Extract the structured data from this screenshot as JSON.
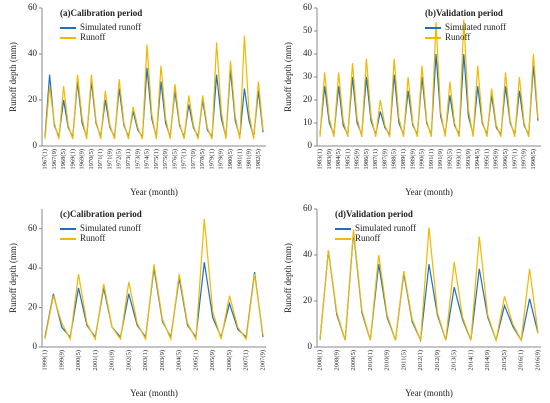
{
  "chart_data": [
    {
      "type": "line",
      "title": "(a)Calibration period",
      "xlabel": "Year (month)",
      "ylabel": "Runoff depth (mm)",
      "categories": [
        "1967(1)",
        null,
        "1967(9)",
        null,
        "1968(5)",
        null,
        "1969(1)",
        null,
        "1969(9)",
        null,
        "1970(5)",
        null,
        "1971(1)",
        null,
        "1971(9)",
        null,
        "1972(5)",
        null,
        "1973(1)",
        null,
        "1973(9)",
        null,
        "1974(5)",
        null,
        "1975(1)",
        null,
        "1975(9)",
        null,
        "1976(5)",
        null,
        "1977(1)",
        null,
        "1977(9)",
        null,
        "1978(5)",
        null,
        "1979(1)",
        null,
        "1979(9)",
        null,
        "1980(5)",
        null,
        "1981(1)",
        null,
        "1981(9)",
        null,
        "1982(5)",
        null
      ],
      "series": [
        {
          "name": "Simulated runoff",
          "color": "#1f6fc0",
          "values": [
            4,
            31,
            9,
            4,
            20,
            8,
            4,
            28,
            10,
            4,
            28,
            10,
            4,
            20,
            8,
            4,
            25,
            9,
            4,
            15,
            7,
            4,
            34,
            12,
            4,
            28,
            10,
            4,
            24,
            9,
            4,
            18,
            8,
            4,
            20,
            7,
            4,
            31,
            12,
            4,
            33,
            11,
            4,
            25,
            11,
            4,
            24,
            6
          ]
        },
        {
          "name": "Runoff",
          "color": "#f2b800",
          "values": [
            3,
            26,
            10,
            3,
            26,
            9,
            3,
            31,
            12,
            3,
            31,
            11,
            3,
            24,
            9,
            3,
            29,
            10,
            3,
            17,
            8,
            3,
            44,
            14,
            3,
            35,
            12,
            3,
            27,
            10,
            3,
            22,
            9,
            3,
            22,
            8,
            3,
            45,
            15,
            3,
            37,
            13,
            3,
            48,
            14,
            3,
            28,
            7
          ]
        }
      ],
      "ylim": [
        0,
        60
      ],
      "yticks": [
        0,
        20,
        40,
        60
      ]
    },
    {
      "type": "line",
      "title": "(b)Validation period",
      "xlabel": "Year (month)",
      "ylabel": "Runoff depth (mm)",
      "categories": [
        "1983(1)",
        null,
        "1983(9)",
        null,
        "1984(5)",
        null,
        "1985(1)",
        null,
        "1985(9)",
        null,
        "1986(5)",
        null,
        "1987(1)",
        null,
        "1987(9)",
        null,
        "1988(5)",
        null,
        "1989(1)",
        null,
        "1989(9)",
        null,
        "1990(5)",
        null,
        "1991(1)",
        null,
        "1991(9)",
        null,
        "1992(5)",
        null,
        "1993(1)",
        null,
        "1993(9)",
        null,
        "1994(5)",
        null,
        "1995(1)",
        null,
        "1995(9)",
        null,
        "1996(5)",
        null,
        "1997(1)",
        null,
        "1997(9)",
        null,
        "1998(5)",
        null
      ],
      "series": [
        {
          "name": "Simulated runoff",
          "color": "#1f6fc0",
          "values": [
            5,
            26,
            10,
            5,
            26,
            9,
            5,
            30,
            10,
            5,
            30,
            11,
            5,
            15,
            8,
            5,
            31,
            10,
            5,
            24,
            9,
            5,
            30,
            10,
            5,
            40,
            13,
            5,
            22,
            9,
            5,
            40,
            13,
            5,
            26,
            10,
            5,
            22,
            8,
            5,
            26,
            10,
            5,
            24,
            9,
            5,
            35,
            11
          ]
        },
        {
          "name": "Runoff",
          "color": "#f2b800",
          "values": [
            4,
            32,
            12,
            4,
            32,
            11,
            4,
            36,
            12,
            4,
            38,
            13,
            4,
            20,
            9,
            4,
            38,
            12,
            4,
            30,
            10,
            4,
            35,
            11,
            4,
            54,
            15,
            4,
            28,
            10,
            4,
            55,
            16,
            4,
            35,
            11,
            4,
            25,
            9,
            4,
            32,
            11,
            4,
            30,
            10,
            4,
            40,
            12
          ]
        }
      ],
      "ylim": [
        0,
        60
      ],
      "yticks": [
        0,
        10,
        20,
        30,
        40,
        50,
        60
      ]
    },
    {
      "type": "line",
      "title": "(c)Calibration period",
      "xlabel": "Year (month)",
      "ylabel": "Runoff depth (mm)",
      "categories": [
        "1999(1)",
        null,
        "1999(9)",
        null,
        "2000(5)",
        null,
        "2001(1)",
        null,
        "2001(9)",
        null,
        "2002(5)",
        null,
        "2003(1)",
        null,
        "2003(9)",
        null,
        "2004(5)",
        null,
        "2005(1)",
        null,
        "2005(9)",
        null,
        "2006(5)",
        null,
        "2007(1)",
        null,
        "2007(9)"
      ],
      "series": [
        {
          "name": "Simulated runoff",
          "color": "#1f6fc0",
          "values": [
            5,
            27,
            10,
            5,
            30,
            11,
            5,
            30,
            10,
            5,
            27,
            11,
            5,
            40,
            13,
            5,
            35,
            11,
            5,
            43,
            15,
            5,
            22,
            9,
            5,
            38,
            5
          ]
        },
        {
          "name": "Runoff",
          "color": "#f2b800",
          "values": [
            4,
            26,
            12,
            4,
            37,
            12,
            4,
            32,
            10,
            4,
            33,
            12,
            4,
            42,
            14,
            4,
            37,
            12,
            4,
            65,
            18,
            4,
            26,
            10,
            4,
            37,
            6
          ]
        }
      ],
      "ylim": [
        0,
        70
      ],
      "yticks": [
        0,
        20,
        40,
        60
      ]
    },
    {
      "type": "line",
      "title": "(d)Validation period",
      "xlabel": "Year (month)",
      "ylabel": "Runoff depth (mm)",
      "categories": [
        "2008(1)",
        null,
        "2008(9)",
        null,
        "2009(5)",
        null,
        "2010(1)",
        null,
        "2010(9)",
        null,
        "2011(5)",
        null,
        "2012(1)",
        null,
        "2012(9)",
        null,
        "2013(5)",
        null,
        "2014(1)",
        null,
        "2014(9)",
        null,
        "2015(5)",
        null,
        "2016(1)",
        null,
        "2016(9)"
      ],
      "series": [
        {
          "name": "Simulated runoff",
          "color": "#1f6fc0",
          "values": [
            3,
            42,
            14,
            3,
            50,
            15,
            3,
            36,
            13,
            3,
            32,
            11,
            3,
            36,
            14,
            3,
            26,
            12,
            3,
            34,
            13,
            3,
            18,
            9,
            3,
            21,
            6
          ]
        },
        {
          "name": "Runoff",
          "color": "#f2b800",
          "values": [
            3,
            42,
            15,
            3,
            51,
            16,
            3,
            40,
            14,
            3,
            33,
            12,
            3,
            52,
            15,
            3,
            37,
            13,
            3,
            48,
            14,
            3,
            22,
            10,
            3,
            34,
            6
          ]
        }
      ],
      "ylim": [
        0,
        60
      ],
      "yticks": [
        0,
        20,
        40,
        60
      ]
    }
  ]
}
